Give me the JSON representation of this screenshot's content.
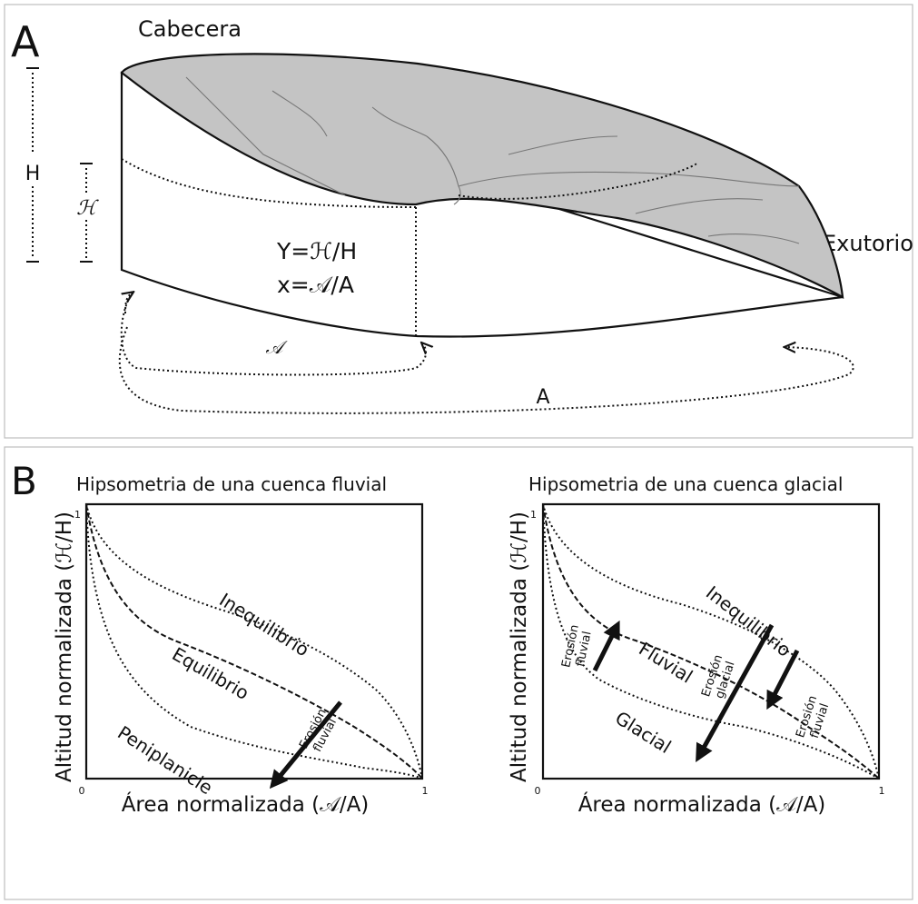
{
  "panel_a": {
    "letter": "A",
    "cabecera": "Cabecera",
    "exutorio": "Exutorio",
    "h_total": "H",
    "h_partial": "ℋ",
    "a_partial": "𝒜",
    "a_total": "A",
    "eq_y": "Y=ℋ/H",
    "eq_x": "x=𝒜/A",
    "colors": {
      "surface": "#c4c4c4",
      "ink": "#111111"
    }
  },
  "panel_b": {
    "letter": "B",
    "left": {
      "title": "Hipsometria de una cuenca fluvial",
      "ylabel": "Altitud normalizada (ℋ/H)",
      "xlabel": "Área normalizada (𝒜/A)",
      "tick_zero": "0",
      "tick_one_x": "1",
      "tick_one_y": "1",
      "curves": [
        "Inequilibrio",
        "Equilibrio",
        "Peniplanicie"
      ],
      "arrow_label_1": "Erosión",
      "arrow_label_2": "fluvial"
    },
    "right": {
      "title": "Hipsometria de una cuenca glacial",
      "ylabel": "Altitud normalizada (ℋ/H)",
      "xlabel": "Área normalizada (𝒜/A)",
      "tick_zero": "0",
      "tick_one_x": "1",
      "tick_one_y": "1",
      "curves": [
        "Inequilibrio",
        "Fluvial",
        "Glacial"
      ],
      "arrow_left_1": "Erosión",
      "arrow_left_2": "fluvial",
      "arrow_mid_1": "Erosión",
      "arrow_mid_2": "glacial",
      "arrow_right_1": "Erosión",
      "arrow_right_2": "fluvial"
    }
  }
}
